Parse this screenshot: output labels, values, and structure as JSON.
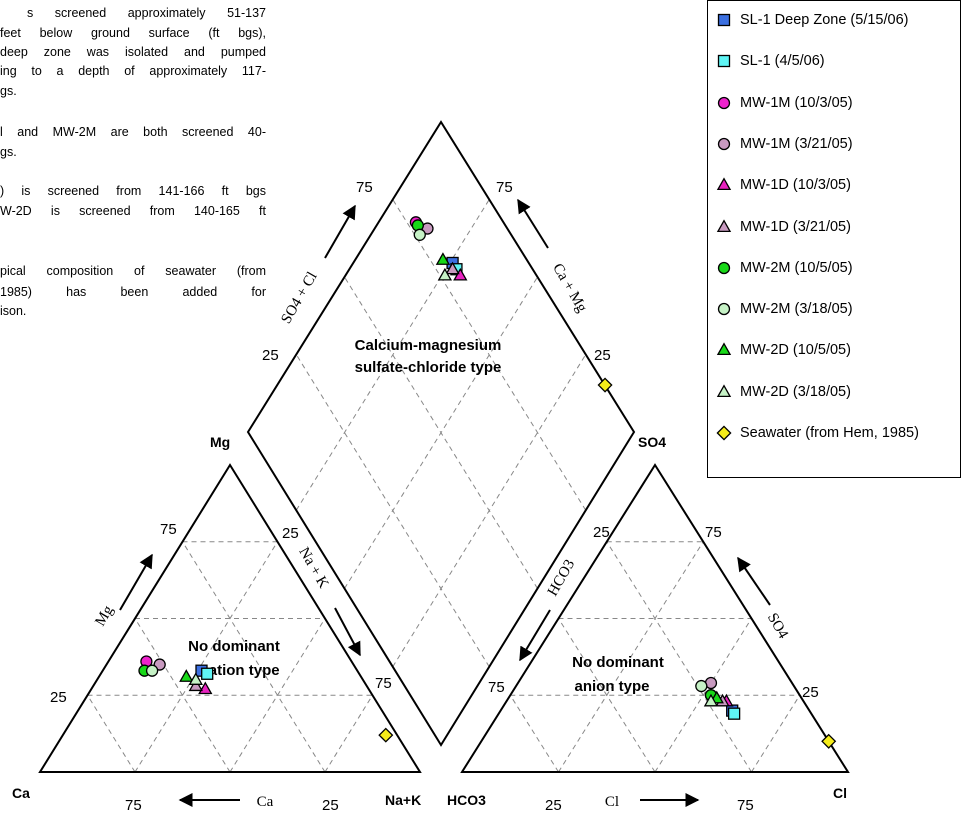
{
  "notes": {
    "lines": [
      "s screened approximately 51-137",
      "feet below ground surface (ft bgs),",
      "deep zone was isolated and pumped",
      "ing to a depth of approximately 117-",
      "gs.",
      "l and MW-2M are both screened 40-",
      "gs.",
      ") is screened from 141-166 ft bgs",
      "W-2D is screened from 140-165 ft",
      "pical composition of seawater (from",
      "1985)      has      been      added      for",
      "ison."
    ]
  },
  "chart_data": {
    "type": "piper",
    "corner_labels": {
      "ca": "Ca",
      "mg": "Mg",
      "nak": "Na+K",
      "hco3": "HCO3",
      "cl": "Cl",
      "so4": "SO4"
    },
    "arrow_labels": {
      "mg": "Mg",
      "nak": "Na + K",
      "ca": "Ca",
      "hco3": "HCO3",
      "so4": "SO4",
      "cl": "Cl",
      "so4cl": "SO4 + Cl",
      "camg": "Ca + Mg"
    },
    "tick_labels": {
      "t25": "25",
      "t75": "75"
    },
    "region_labels": {
      "cation": [
        "No dominant",
        "cation type"
      ],
      "anion": [
        "No dominant",
        "anion type"
      ],
      "diamond": [
        "Calcium-magnesium",
        "sulfate-chloride type"
      ]
    },
    "series": [
      {
        "name": "SL-1 Deep Zone (5/15/06)",
        "marker": "square",
        "color": "#3b6fe0",
        "cation": {
          "ca": 41,
          "mg": 33
        },
        "anion": {
          "cl": 60,
          "so4": 20
        }
      },
      {
        "name": "SL-1 (4/5/06)",
        "marker": "square",
        "color": "#5ff5f5",
        "cation": {
          "ca": 40,
          "mg": 32
        },
        "anion": {
          "cl": 61,
          "so4": 19
        }
      },
      {
        "name": "MW-1M (10/3/05)",
        "marker": "circle",
        "color": "#ee22cc",
        "cation": {
          "ca": 54,
          "mg": 36
        },
        "anion": {
          "cl": 52,
          "so4": 25
        }
      },
      {
        "name": "MW-1M (3/21/05)",
        "marker": "circle",
        "color": "#c89ac0",
        "cation": {
          "ca": 51,
          "mg": 35
        },
        "anion": {
          "cl": 50,
          "so4": 29
        }
      },
      {
        "name": "MW-1D (10/3/05)",
        "marker": "triangle",
        "color": "#e822c0",
        "cation": {
          "ca": 43,
          "mg": 27
        },
        "anion": {
          "cl": 57,
          "so4": 23
        }
      },
      {
        "name": "MW-1D (3/21/05)",
        "marker": "triangle",
        "color": "#c89ac0",
        "cation": {
          "ca": 45,
          "mg": 28
        },
        "anion": {
          "cl": 56,
          "so4": 23
        }
      },
      {
        "name": "MW-2M (10/5/05)",
        "marker": "circle",
        "color": "#18d818",
        "cation": {
          "ca": 56,
          "mg": 33
        },
        "anion": {
          "cl": 52,
          "so4": 25
        }
      },
      {
        "name": "MW-2M (3/18/05)",
        "marker": "circle",
        "color": "#c6f2c6",
        "cation": {
          "ca": 54,
          "mg": 33
        },
        "anion": {
          "cl": 48,
          "so4": 28
        }
      },
      {
        "name": "MW-2D (10/5/05)",
        "marker": "triangle",
        "color": "#18d818",
        "cation": {
          "ca": 46,
          "mg": 31
        },
        "anion": {
          "cl": 54,
          "so4": 24
        }
      },
      {
        "name": "MW-2D (3/18/05)",
        "marker": "triangle",
        "color": "#c6f2c6",
        "cation": {
          "ca": 44,
          "mg": 30
        },
        "anion": {
          "cl": 53,
          "so4": 23
        }
      },
      {
        "name": "Seawater (from Hem, 1985)",
        "marker": "diamond",
        "color": "#f5ec1a",
        "cation": {
          "ca": 3,
          "mg": 12
        },
        "anion": {
          "cl": 90,
          "so4": 10
        }
      }
    ]
  }
}
